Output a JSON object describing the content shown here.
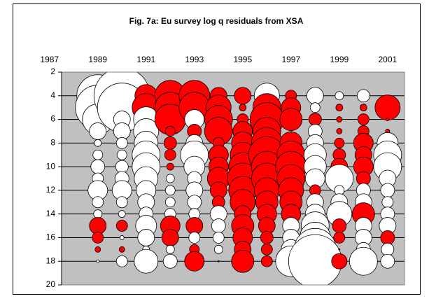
{
  "chart_data": {
    "type": "bubble",
    "title": "Fig. 7a: Eu survey log q residuals from XSA",
    "x": [
      1989,
      1990,
      1991,
      1992,
      1993,
      1994,
      1995,
      1996,
      1997,
      1998,
      1999,
      2000,
      2001
    ],
    "y": [
      4,
      5,
      6,
      7,
      8,
      9,
      10,
      11,
      12,
      13,
      14,
      15,
      16,
      17,
      18
    ],
    "values": [
      [
        -1.5,
        -1.6,
        -1.1,
        -0.6,
        -0.25,
        -0.35,
        -0.5,
        -0.4,
        -0.7,
        -0.4,
        -0.3,
        0.6,
        0.4,
        0.2,
        -0.1
      ],
      [
        -2.0,
        -1.75,
        -0.6,
        -0.6,
        -0.4,
        -0.35,
        -0.45,
        -0.5,
        -0.7,
        -0.4,
        -0.25,
        0.4,
        -0.15,
        0.2,
        -0.4
      ],
      [
        0.8,
        1.0,
        -0.9,
        -0.9,
        -0.85,
        -1.0,
        -1.0,
        -0.85,
        -0.7,
        -0.6,
        -0.5,
        -0.75,
        -0.6,
        -0.25,
        -0.85
      ],
      [
        1.1,
        1.1,
        1.1,
        0.35,
        0.45,
        0.4,
        0.25,
        -0.3,
        -0.35,
        -0.35,
        -0.4,
        0.7,
        0.6,
        -0.3,
        -0.5
      ],
      [
        1.1,
        1.1,
        -0.7,
        0.5,
        -0.6,
        -1.0,
        -0.75,
        -0.5,
        -0.6,
        -0.5,
        -0.4,
        0.6,
        -0.4,
        0.35,
        0.7
      ],
      [
        0.6,
        0.9,
        1.0,
        1.0,
        0.4,
        0.7,
        0.7,
        0.8,
        0.6,
        0.45,
        -0.6,
        -0.5,
        -0.4,
        -0.3,
        0.05
      ],
      [
        0.6,
        0.25,
        0.4,
        0.7,
        0.8,
        0.9,
        1.0,
        1.1,
        1.0,
        0.9,
        0.6,
        0.8,
        0.7,
        0.6,
        0.8
      ],
      [
        -0.9,
        1.0,
        1.2,
        1.0,
        1.1,
        1.3,
        1.1,
        1.1,
        0.9,
        0.8,
        0.7,
        0.6,
        0.45,
        0.4,
        0.4
      ],
      [
        0.4,
        0.7,
        0.8,
        -0.05,
        0.8,
        1.0,
        1.1,
        1.0,
        0.9,
        0.8,
        0.7,
        -0.6,
        -0.6,
        -0.7,
        -1.1
      ],
      [
        -0.6,
        -0.35,
        0.45,
        -0.5,
        -0.6,
        -0.8,
        -0.8,
        -0.7,
        0.4,
        -0.6,
        -0.7,
        -1.0,
        -1.1,
        -1.5,
        -1.9
      ],
      [
        -0.3,
        0.25,
        0.2,
        0.2,
        0.35,
        0.45,
        0.6,
        -1.0,
        -0.35,
        -0.6,
        -0.9,
        0.5,
        0.4,
        0.05,
        0.55
      ],
      [
        -0.45,
        0.25,
        0.4,
        0.4,
        0.7,
        0.6,
        0.7,
        0.5,
        -0.5,
        -0.6,
        0.8,
        -0.6,
        -0.6,
        -0.5,
        -1.0
      ],
      [
        0,
        0.9,
        0.1,
        0.15,
        -0.75,
        -1.0,
        -1.0,
        -0.6,
        -0.5,
        -0.4,
        -0.5,
        -0.6,
        0.5,
        -0.45,
        -0.5
      ]
    ],
    "positive_color": "#ff0000",
    "negative_color": "#ffffff",
    "xlim": [
      1987.5,
      2001.7
    ],
    "xticks": [
      1987,
      1989,
      1991,
      1993,
      1995,
      1997,
      1999,
      2001
    ],
    "ylim": [
      2,
      20
    ],
    "yticks": [
      2,
      4,
      6,
      8,
      10,
      12,
      14,
      16,
      18,
      20
    ],
    "y_inverted": true,
    "grid": true
  }
}
